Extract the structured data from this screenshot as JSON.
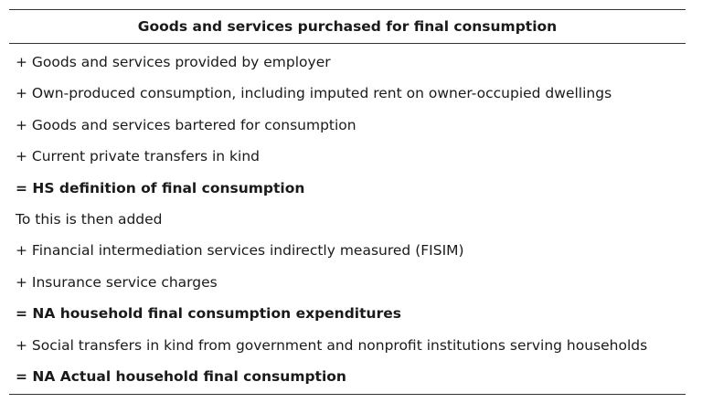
{
  "table": {
    "header": "Goods and services purchased for final consumption",
    "rows": [
      {
        "text": "+ Goods and services provided by employer",
        "bold": false
      },
      {
        "text": "+ Own-produced consumption, including imputed rent on owner-occupied dwellings",
        "bold": false
      },
      {
        "text": "+ Goods and services bartered for consumption",
        "bold": false
      },
      {
        "text": "+ Current private transfers in kind",
        "bold": false
      },
      {
        "text": "= HS definition of final consumption",
        "bold": true
      },
      {
        "text": "To this is then added",
        "bold": false
      },
      {
        "text": "+ Financial intermediation services indirectly measured (FISIM)",
        "bold": false
      },
      {
        "text": "+ Insurance service charges",
        "bold": false
      },
      {
        "text": "= NA household final consumption expenditures",
        "bold": true
      },
      {
        "text": "+ Social transfers in kind from government and nonprofit institutions serving households",
        "bold": false
      },
      {
        "text": "= NA Actual household final consumption",
        "bold": true
      }
    ]
  }
}
